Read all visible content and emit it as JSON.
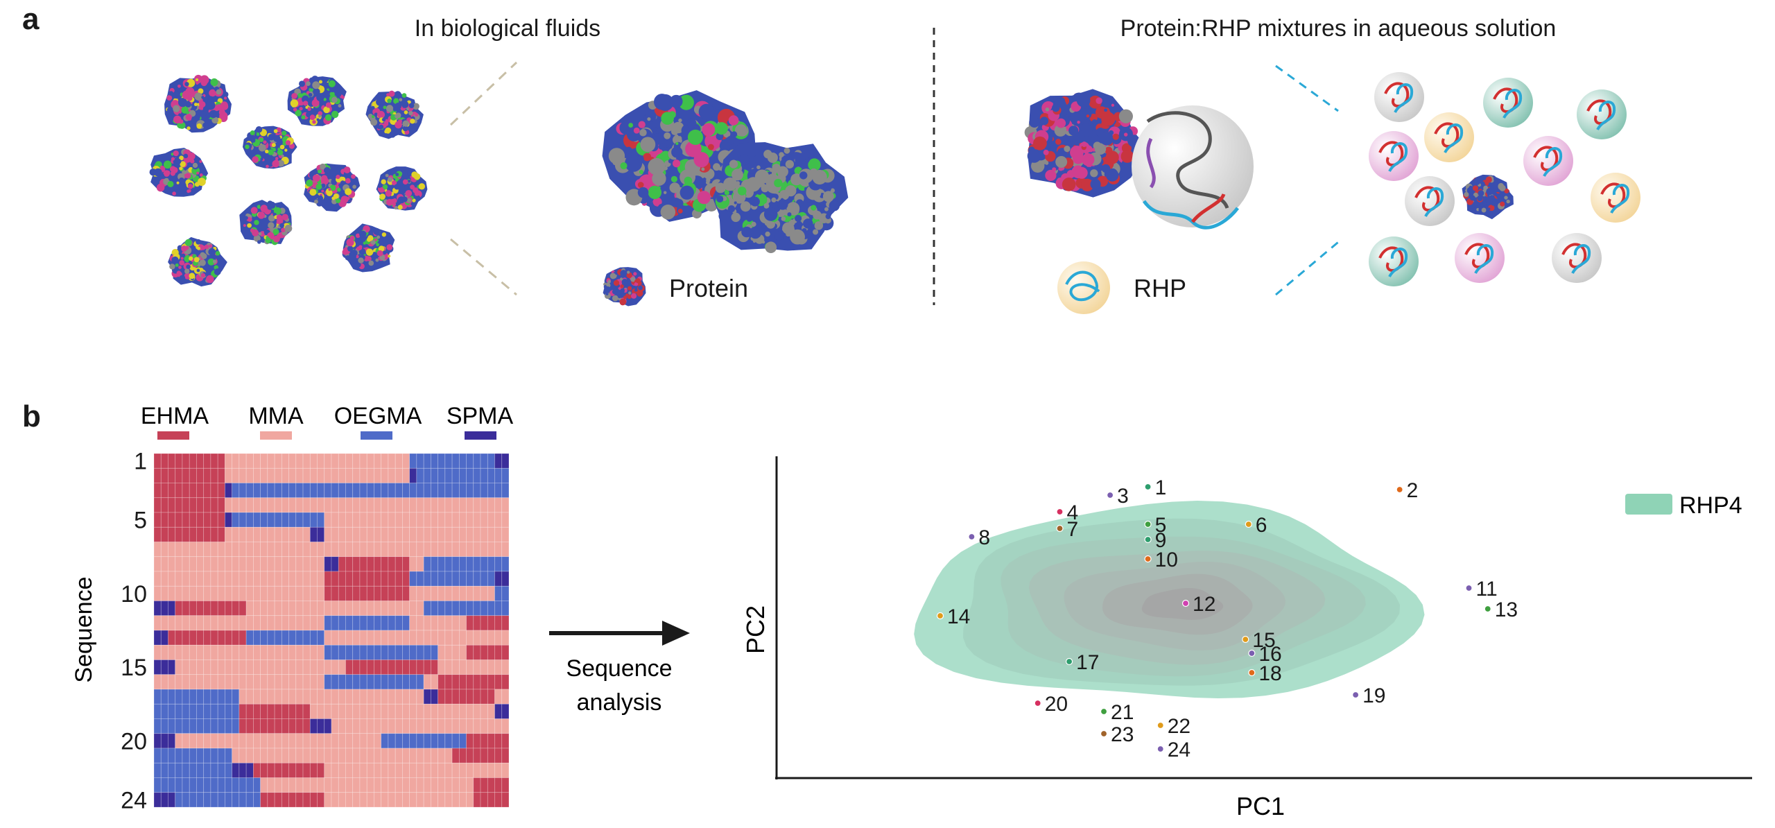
{
  "panel_a": {
    "label": "a",
    "left_title": "In biological fluids",
    "right_title": "Protein:RHP mixtures in aqueous solution",
    "protein_legend": "Protein",
    "rhp_legend": "RHP",
    "protein_colors": [
      "#3a4fb0",
      "#d03e8f",
      "#e0d12a",
      "#3fbf4a",
      "#8a8a8a",
      "#c8353f"
    ],
    "rhp_shell_colors": [
      "#d9d9d9",
      "#e8b8de",
      "#f5dcae",
      "#9fcfc2"
    ]
  },
  "panel_b": {
    "label": "b",
    "monomers": [
      {
        "name": "EHMA",
        "color": "#c64157"
      },
      {
        "name": "MMA",
        "color": "#f0a7a0"
      },
      {
        "name": "OEGMA",
        "color": "#4f6bc8"
      },
      {
        "name": "SPMA",
        "color": "#3b2d9a"
      }
    ],
    "heatmap": {
      "ylabel": "Sequence",
      "ytick_labels": [
        "1",
        "5",
        "10",
        "15",
        "20",
        "24"
      ],
      "rows": [
        "EEEEEEEEEEMMMMMMMMMMMMMMMMMMMMMMMMMMOOOOOOOOOOOOSS",
        "EEEEEEEEEEMMMMMMMMMMMMMMMMMMMMMMMMMMSOOOOOOOOOOOOO",
        "EEEEEEEEEESOOOOOOOOOOOOOOOOOOOOOOOOOOOOOOOOOOOOOOO",
        "EEEEEEEEEEMMMMMMMMMMMMMMMMMMMMMMMMMMMMMMMMMMMMMMMM",
        "EEEEEEEEEESOOOOOOOOOOOOOMMMMMMMMMMMMMMMMMMMMMMMMMM",
        "EEEEEEEEEEMMMMMMMMMMMMSSMMMMMMMMMMMMMMMMMMMMMMMMMM",
        "MMMMMMMMMMMMMMMMMMMMMMMMMMMMMMMMMMMMMMMMMMMMMMMMMM",
        "MMMMMMMMMMMMMMMMMMMMMMMMSSEEEEEEEEEEMMOOOOOOOOOOOO",
        "MMMMMMMMMMMMMMMMMMMMMMMMEEEEEEEEEEEEOOOOOOOOOOOOSS",
        "MMMMMMMMMMMMMMMMMMMMMMMMEEEEEEEEEEEEMMMMMMMMMMMMOO",
        "SSSEEEEEEEEEEMMMMMMMMMMMMMMMMMMMMMMMMMOOOOOOOOOOOO",
        "MMMMMMMMMMMMMMMMMMMMMMMMOOOOOOOOOOOOMMMMMMMMEEEEEE",
        "SSEEEEEEEEEEEOOOOOOOOOOOMMMMMMMMMMMMMMMMMMMMMMMMMM",
        "MMMMMMMMMMMMMMMMMMMMMMMMOOOOOOOOOOOOOOOOMMMMEEEEEE",
        "SSSMMMMMMMMMMMMMMMMMMMMMMMMEEEEEEEEEEEEEMMMMMMMMMM",
        "MMMMMMMMMMMMMMMMMMMMMMMMOOOOOOOOOOOOOOMMEEEEEEEEEE",
        "OOOOOOOOOOOOMMMMMMMMMMMMMMMMMMMMMMMMMMSSEEEEEEEEMM",
        "OOOOOOOOOOOOEEEEEEEEEEMMMMMMMMMMMMMMMMMMMMMMMMMMSS",
        "OOOOOOOOOOOOEEEEEEEEEESSSMMMMMMMMMMMMMMMMMMMMMMMMM",
        "SSSMMMMMMMMMMMMMMMMMMMMMMMMMMMMMOOOOOOOOOOOOEEEEEEEE",
        "OOOOOOOOOOOMMMMMMMMMMMMMMMMMMMMMMMMMMMMMMMEEEEEEEE",
        "OOOOOOOOOOOSSSEEEEEEEEEEMMMMMMMMMMMMMMMMMMMMMMMMMM",
        "OOOOOOOOOOOOOOOMMMMMMMMMMMMMMMMMMMMMMMMMMMMMMEEEEEE",
        "SSSOOOOOOOOOOOOEEEEEEEEEMMMMMMMMMMMMMMMMMMMMMEEEEEE"
      ]
    },
    "arrow_label_line1": "Sequence",
    "arrow_label_line2": "analysis"
  },
  "chart_data": {
    "type": "scatter",
    "xlabel": "PC1",
    "ylabel": "PC2",
    "legend": [
      {
        "name": "RHP4",
        "color": "#8fd3b6",
        "placement": "top-right"
      }
    ],
    "points": [
      {
        "label": "1",
        "x": -0.12,
        "y": 0.9,
        "color": "#2e9e6e"
      },
      {
        "label": "2",
        "x": 0.68,
        "y": 0.88,
        "color": "#e06a1b"
      },
      {
        "label": "3",
        "x": -0.24,
        "y": 0.84,
        "color": "#7b5fb0"
      },
      {
        "label": "4",
        "x": -0.4,
        "y": 0.72,
        "color": "#d63060"
      },
      {
        "label": "5",
        "x": -0.12,
        "y": 0.63,
        "color": "#3f9f3f"
      },
      {
        "label": "6",
        "x": 0.2,
        "y": 0.63,
        "color": "#e09b1b"
      },
      {
        "label": "7",
        "x": -0.4,
        "y": 0.6,
        "color": "#a0632a"
      },
      {
        "label": "8",
        "x": -0.68,
        "y": 0.54,
        "color": "#7b5fb0"
      },
      {
        "label": "9",
        "x": -0.12,
        "y": 0.52,
        "color": "#2e9e6e"
      },
      {
        "label": "10",
        "x": -0.12,
        "y": 0.38,
        "color": "#e06a1b"
      },
      {
        "label": "11",
        "x": 0.9,
        "y": 0.17,
        "color": "#7b5fb0"
      },
      {
        "label": "12",
        "x": 0.0,
        "y": 0.06,
        "color": "#d040b0"
      },
      {
        "label": "13",
        "x": 0.96,
        "y": 0.02,
        "color": "#3f9f3f"
      },
      {
        "label": "14",
        "x": -0.78,
        "y": -0.03,
        "color": "#e09b1b"
      },
      {
        "label": "15",
        "x": 0.19,
        "y": -0.2,
        "color": "#e09b1b"
      },
      {
        "label": "16",
        "x": 0.21,
        "y": -0.3,
        "color": "#7b5fb0"
      },
      {
        "label": "17",
        "x": -0.37,
        "y": -0.36,
        "color": "#2e9e6e"
      },
      {
        "label": "18",
        "x": 0.21,
        "y": -0.44,
        "color": "#e06a1b"
      },
      {
        "label": "19",
        "x": 0.54,
        "y": -0.6,
        "color": "#7b5fb0"
      },
      {
        "label": "20",
        "x": -0.47,
        "y": -0.66,
        "color": "#d63060"
      },
      {
        "label": "21",
        "x": -0.26,
        "y": -0.72,
        "color": "#3f9f3f"
      },
      {
        "label": "22",
        "x": -0.08,
        "y": -0.82,
        "color": "#e09b1b"
      },
      {
        "label": "23",
        "x": -0.26,
        "y": -0.88,
        "color": "#a0632a"
      },
      {
        "label": "24",
        "x": -0.08,
        "y": -0.99,
        "color": "#7b5fb0"
      }
    ],
    "xlim": [
      -1.3,
      1.8
    ],
    "ylim": [
      -1.2,
      1.12
    ],
    "grid": false
  }
}
